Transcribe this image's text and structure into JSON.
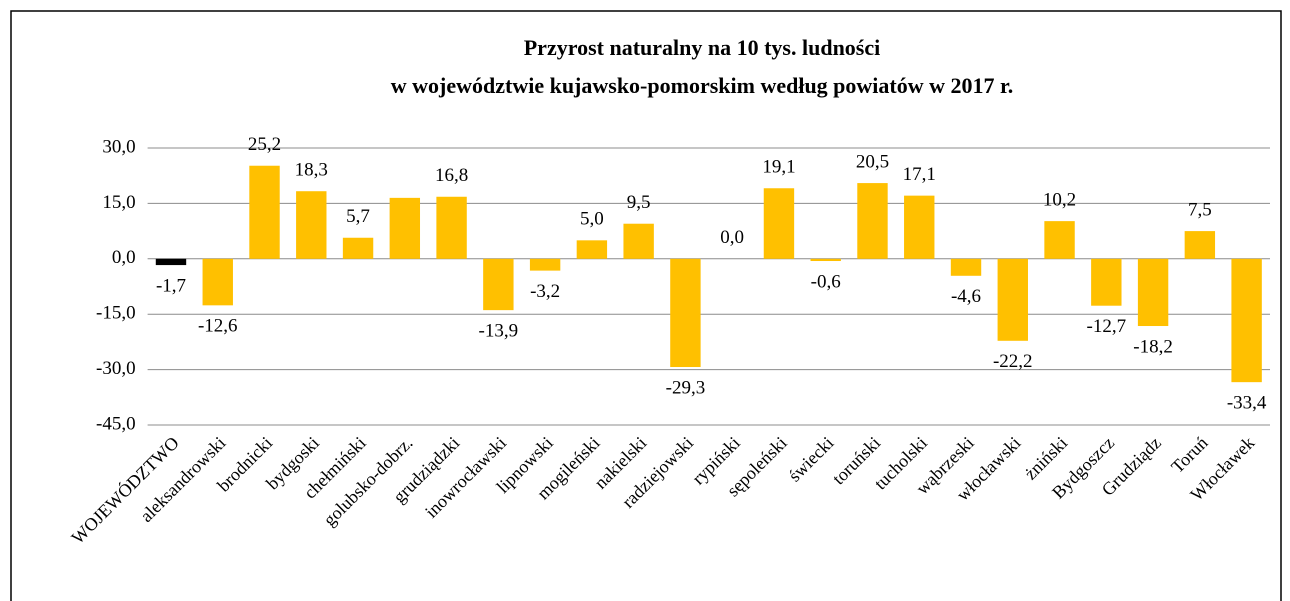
{
  "chart_data": {
    "type": "bar",
    "title": [
      "Przyrost naturalny na 10 tys. ludności",
      "w województwie kujawsko-pomorskim według powiatów w 2017 r."
    ],
    "categories": [
      "WOJEWÓDZTWO",
      "aleksandrowski",
      "brodnicki",
      "bydgoski",
      "chełmiński",
      "golubsko-dobrz.",
      "grudziądzki",
      "inowrocławski",
      "lipnowski",
      "mogileński",
      "nakielski",
      "radziejowski",
      "rypiński",
      "sępoleński",
      "świecki",
      "toruński",
      "tucholski",
      "wąbrzeski",
      "włocławski",
      "żniński",
      "Bydgoszcz",
      "Grudziądz",
      "Toruń",
      "Włocławek"
    ],
    "values": [
      -1.7,
      -12.6,
      25.2,
      18.3,
      5.7,
      16.5,
      16.8,
      -13.9,
      -3.2,
      5.0,
      9.5,
      -29.3,
      0.0,
      19.1,
      -0.6,
      20.5,
      17.1,
      -4.6,
      -22.2,
      10.2,
      -12.7,
      -18.2,
      7.5,
      -33.4
    ],
    "value_labels": [
      "-1,7",
      "-12,6",
      "25,2",
      "18,3",
      "5,7",
      null,
      "16,8",
      "-13,9",
      "-3,2",
      "5,0",
      "9,5",
      "-29,3",
      "0,0",
      "19,1",
      "-0,6",
      "20,5",
      "17,1",
      "-4,6",
      "-22,2",
      "10,2",
      "-12,7",
      "-18,2",
      "7,5",
      "-33,4"
    ],
    "colors": [
      "#000000",
      "#ffc000",
      "#ffc000",
      "#ffc000",
      "#ffc000",
      "#ffc000",
      "#ffc000",
      "#ffc000",
      "#ffc000",
      "#ffc000",
      "#ffc000",
      "#ffc000",
      "#ffc000",
      "#ffc000",
      "#ffc000",
      "#ffc000",
      "#ffc000",
      "#ffc000",
      "#ffc000",
      "#ffc000",
      "#ffc000",
      "#ffc000",
      "#ffc000",
      "#ffc000"
    ],
    "ylim": [
      -45,
      30
    ],
    "yticks": [
      {
        "value": 30,
        "label": "30,0"
      },
      {
        "value": 15,
        "label": "15,0"
      },
      {
        "value": 0,
        "label": "0,0"
      },
      {
        "value": -15,
        "label": "-15,0"
      },
      {
        "value": -30,
        "label": "-30,0"
      },
      {
        "value": -45,
        "label": "-45,0"
      }
    ],
    "grid": true
  }
}
